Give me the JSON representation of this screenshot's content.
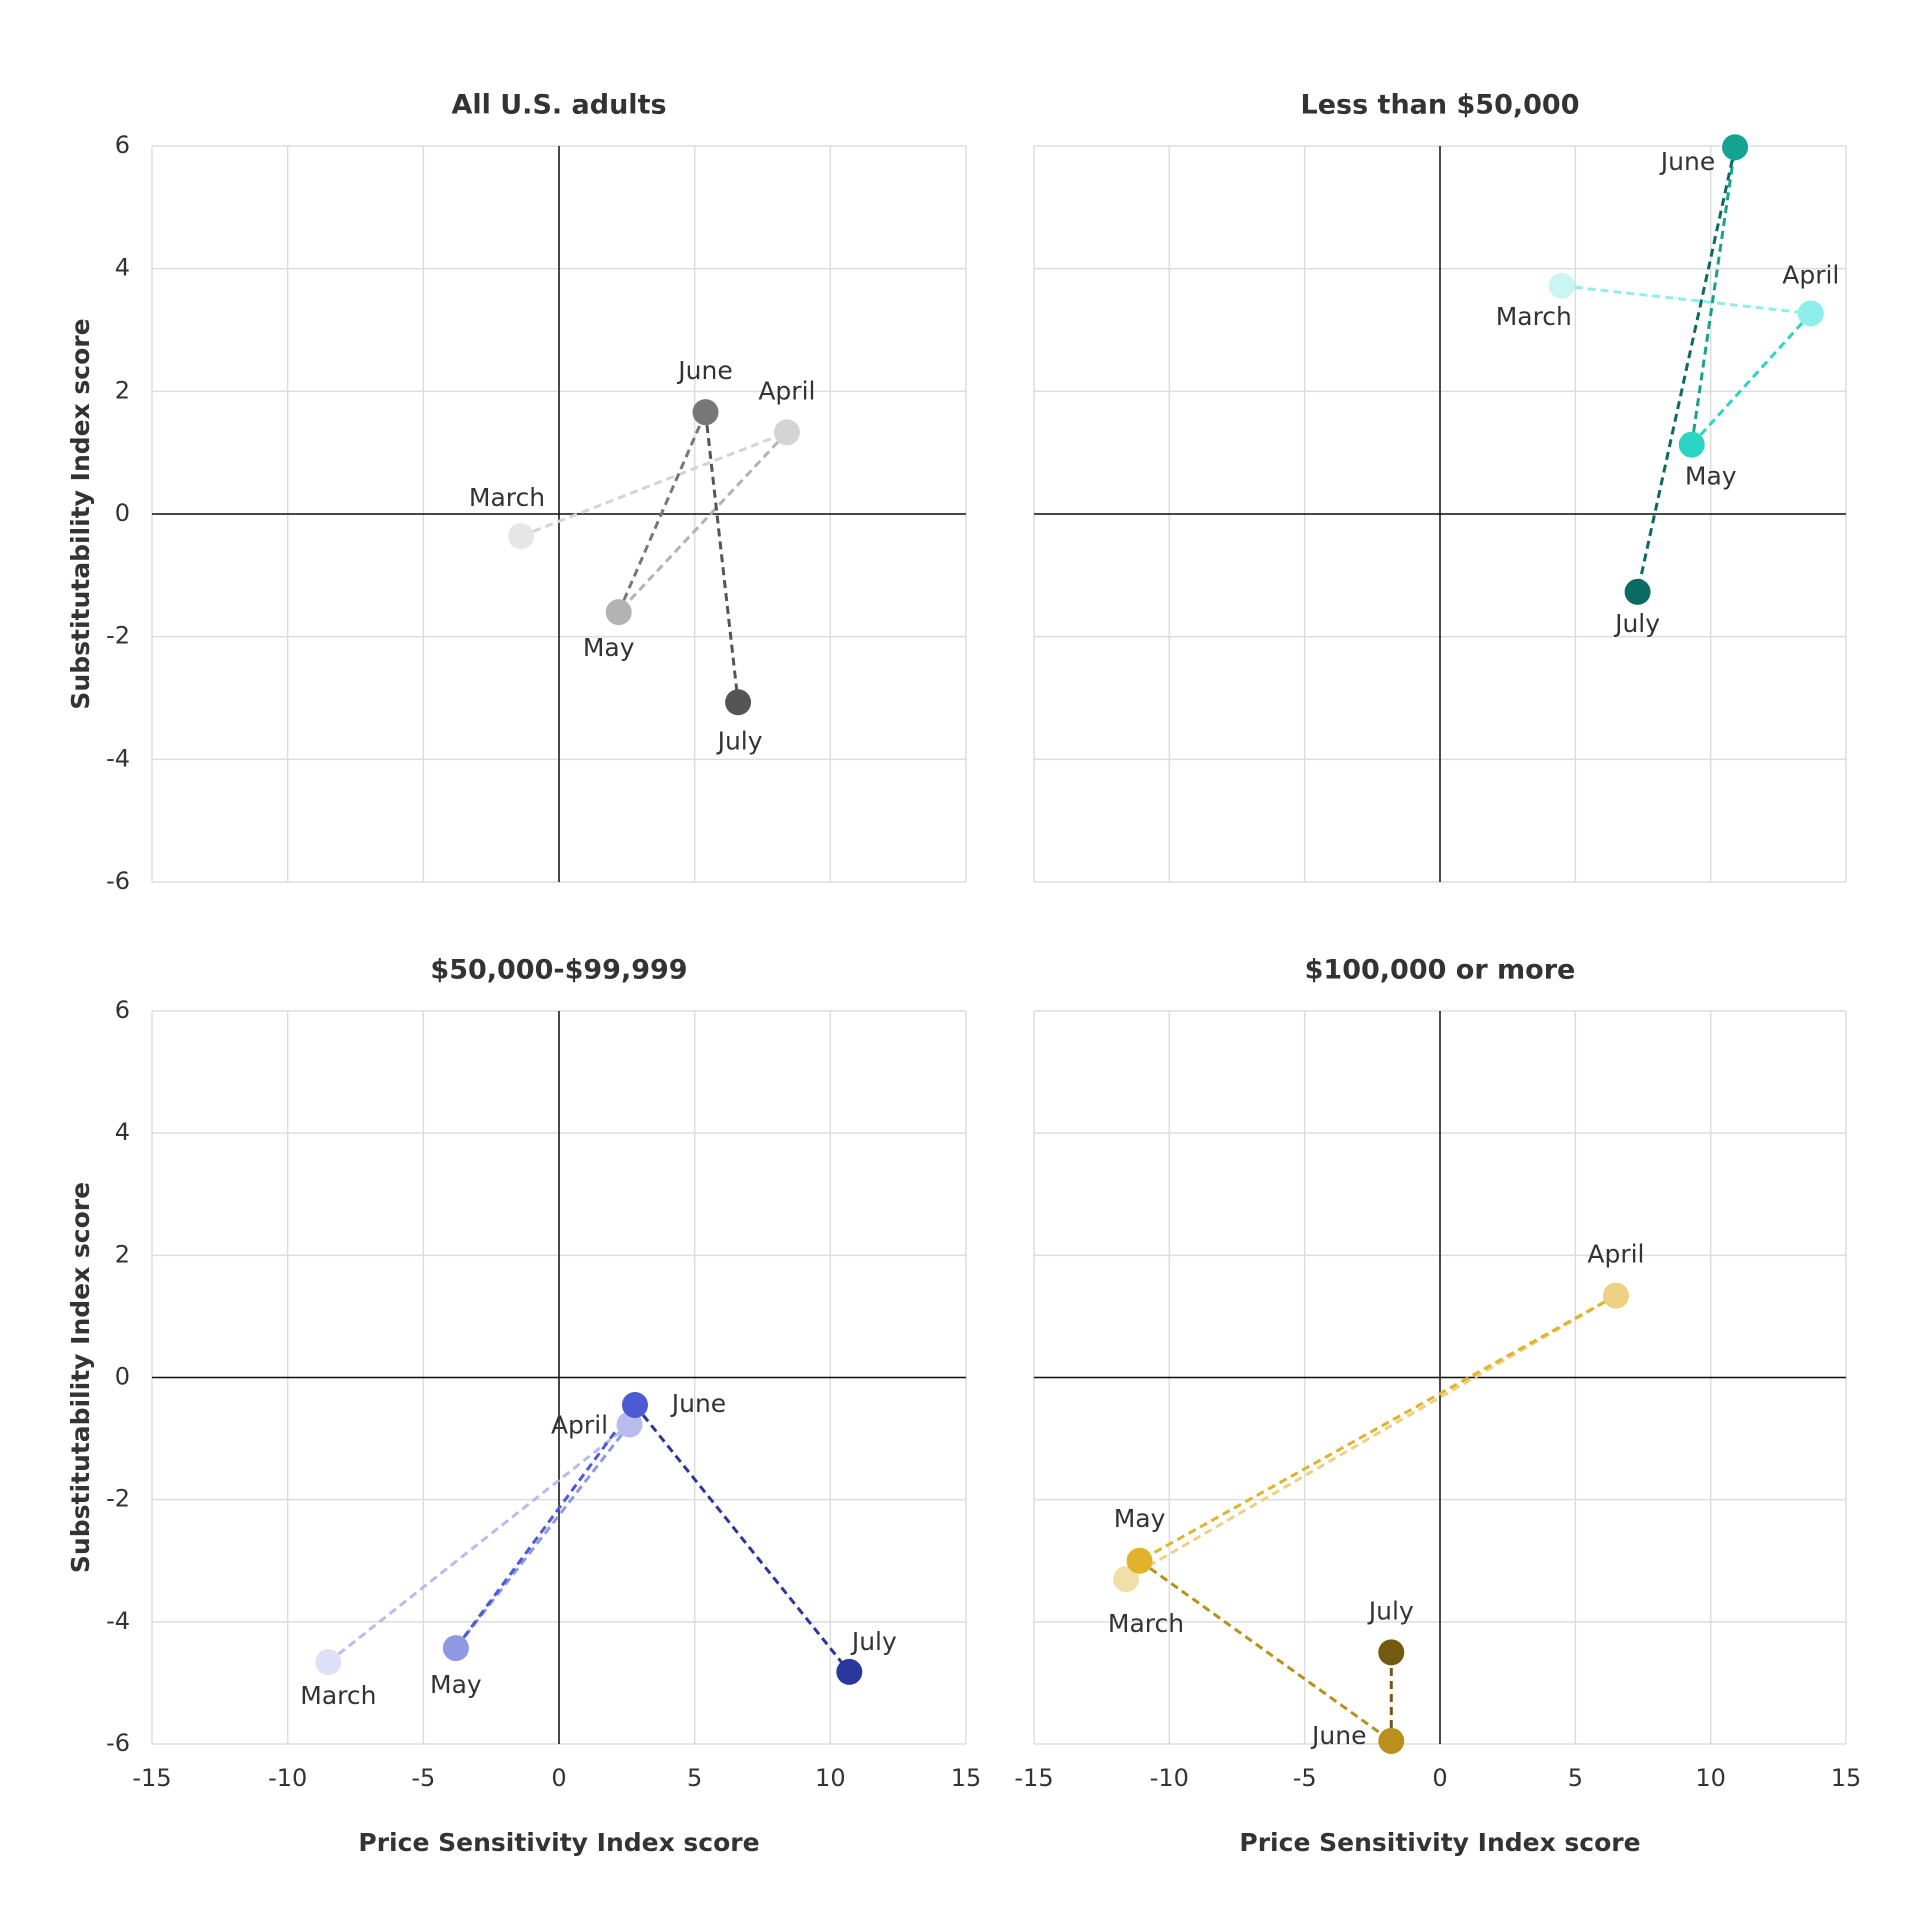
{
  "chart_data": [
    {
      "type": "scatter",
      "title": "All U.S. adults",
      "ylabel": "Substitutability Index score",
      "categories": [
        "March",
        "April",
        "May",
        "June",
        "July"
      ],
      "x": [
        -1.4,
        8.4,
        2.2,
        5.4,
        6.6
      ],
      "y": [
        -0.36,
        1.33,
        -1.6,
        1.66,
        -3.07
      ],
      "colors": [
        "#e6e6e6",
        "#d4d4d4",
        "#b3b3b3",
        "#777777",
        "#555555"
      ],
      "xlim": [
        -15,
        15
      ],
      "ylim": [
        -6,
        6
      ],
      "xticks": [
        -15,
        -10,
        -5,
        0,
        5,
        10,
        15
      ],
      "yticks": [
        -6,
        -4,
        -2,
        0,
        2,
        4,
        6
      ]
    },
    {
      "type": "scatter",
      "title": "Less than $50,000",
      "categories": [
        "March",
        "April",
        "May",
        "June",
        "July"
      ],
      "x": [
        4.5,
        13.7,
        9.3,
        10.9,
        7.3
      ],
      "y": [
        3.72,
        3.27,
        1.13,
        5.98,
        -1.27
      ],
      "colors": [
        "#c9f6f2",
        "#8cefeb",
        "#2cd4c4",
        "#14a391",
        "#0b6b62"
      ],
      "xlim": [
        -15,
        15
      ],
      "ylim": [
        -6,
        6
      ],
      "xticks": [
        -15,
        -10,
        -5,
        0,
        5,
        10,
        15
      ],
      "yticks": [
        -6,
        -4,
        -2,
        0,
        2,
        4,
        6
      ]
    },
    {
      "type": "scatter",
      "title": "$50,000-$99,999",
      "xlabel": "Price Sensitivity Index score",
      "ylabel": "Substitutability Index score",
      "categories": [
        "March",
        "April",
        "May",
        "June",
        "July"
      ],
      "x": [
        -8.5,
        2.6,
        -3.8,
        2.8,
        10.7
      ],
      "y": [
        -4.66,
        -0.77,
        -4.43,
        -0.45,
        -4.82
      ],
      "colors": [
        "#dfe0f7",
        "#b7bcec",
        "#8f98e3",
        "#4a5bd4",
        "#2a389e"
      ],
      "xlim": [
        -15,
        15
      ],
      "ylim": [
        -6,
        6
      ],
      "xticks": [
        -15,
        -10,
        -5,
        0,
        5,
        10,
        15
      ],
      "yticks": [
        -6,
        -4,
        -2,
        0,
        2,
        4,
        6
      ]
    },
    {
      "type": "scatter",
      "title": "$100,000 or more",
      "xlabel": "Price Sensitivity Index score",
      "categories": [
        "March",
        "April",
        "May",
        "June",
        "July"
      ],
      "x": [
        -11.6,
        6.5,
        -11.1,
        -1.8,
        -1.8
      ],
      "y": [
        -3.3,
        1.34,
        -3.0,
        -5.95,
        -4.5
      ],
      "colors": [
        "#efdfa8",
        "#ecd183",
        "#e0b32a",
        "#b8901b",
        "#735a10"
      ],
      "xlim": [
        -15,
        15
      ],
      "ylim": [
        -6,
        6
      ],
      "xticks": [
        -15,
        -10,
        -5,
        0,
        5,
        10,
        15
      ],
      "yticks": [
        -6,
        -4,
        -2,
        0,
        2,
        4,
        6
      ]
    }
  ]
}
